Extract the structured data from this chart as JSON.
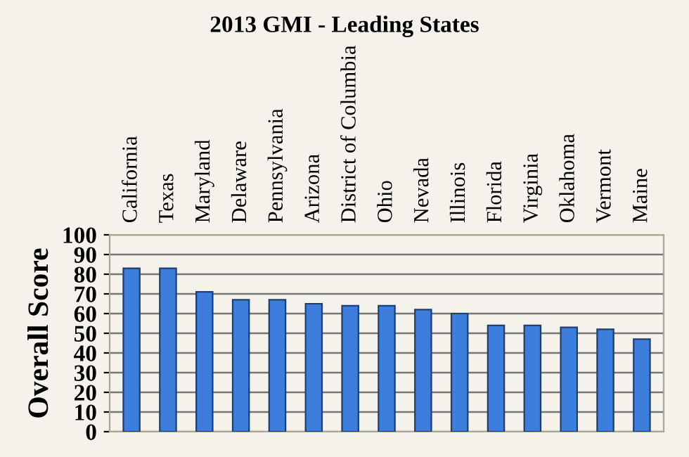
{
  "chart_data": {
    "type": "bar",
    "title": "2013 GMI - Leading States",
    "ylabel": "Overall Score",
    "categories": [
      "California",
      "Texas",
      "Maryland",
      "Delaware",
      "Pennsylvania",
      "Arizona",
      "District of Columbia",
      "Ohio",
      "Nevada",
      "Illinois",
      "Florida",
      "Virginia",
      "Oklahoma",
      "Vermont",
      "Maine"
    ],
    "values": [
      83,
      83,
      71,
      67,
      67,
      65,
      64,
      64,
      62,
      60,
      54,
      54,
      53,
      52,
      47
    ],
    "color": "#3d7ddb",
    "ylim": [
      0,
      100
    ],
    "yticks": [
      0,
      10,
      20,
      30,
      40,
      50,
      60,
      70,
      80,
      90,
      100
    ],
    "grid": "y"
  }
}
